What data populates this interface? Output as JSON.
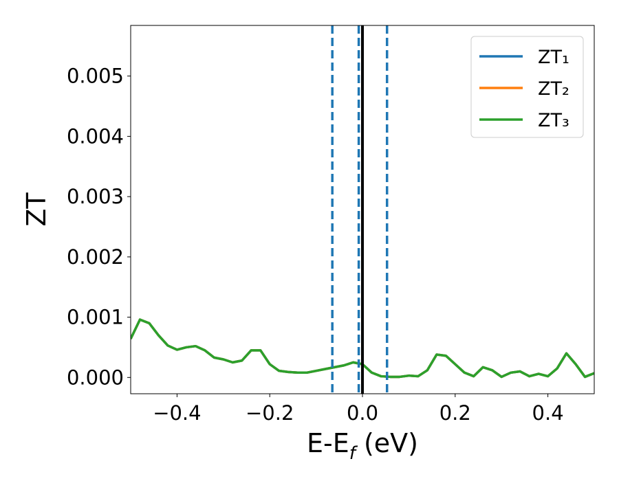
{
  "chart_data": {
    "type": "line",
    "xlabel": [
      "E-E",
      "f",
      " (eV)"
    ],
    "ylabel": "ZT",
    "x": [
      -0.5,
      -0.48,
      -0.46,
      -0.44,
      -0.42,
      -0.4,
      -0.38,
      -0.36,
      -0.34,
      -0.32,
      -0.3,
      -0.28,
      -0.26,
      -0.24,
      -0.22,
      -0.2,
      -0.18,
      -0.16,
      -0.14,
      -0.12,
      -0.1,
      -0.08,
      -0.06,
      -0.04,
      -0.02,
      0.0,
      0.02,
      0.04,
      0.06,
      0.08,
      0.1,
      0.12,
      0.14,
      0.16,
      0.18,
      0.2,
      0.22,
      0.24,
      0.26,
      0.28,
      0.3,
      0.32,
      0.34,
      0.36,
      0.38,
      0.4,
      0.42,
      0.44,
      0.46,
      0.48,
      0.5
    ],
    "series": [
      {
        "name": "ZT₁",
        "color": "#1f77b4",
        "values": [
          0.00064,
          0.00096,
          0.0009,
          0.0007,
          0.00053,
          0.00046,
          0.0005,
          0.00052,
          0.00045,
          0.00033,
          0.0003,
          0.00025,
          0.00028,
          0.00045,
          0.00045,
          0.00022,
          0.00011,
          9e-05,
          8e-05,
          8e-05,
          0.00011,
          0.00014,
          0.00017,
          0.0002,
          0.00025,
          0.00022,
          8e-05,
          2e-05,
          1e-05,
          1e-05,
          3e-05,
          2e-05,
          0.00012,
          0.00038,
          0.00036,
          0.00022,
          8e-05,
          2e-05,
          0.00017,
          0.00012,
          1e-05,
          8e-05,
          0.0001,
          2e-05,
          6e-05,
          2e-05,
          0.00015,
          0.0004,
          0.00022,
          1e-05,
          7e-05
        ]
      },
      {
        "name": "ZT₂",
        "color": "#ff7f0e",
        "values": [
          0.00064,
          0.00096,
          0.0009,
          0.0007,
          0.00053,
          0.00046,
          0.0005,
          0.00052,
          0.00045,
          0.00033,
          0.0003,
          0.00025,
          0.00028,
          0.00045,
          0.00045,
          0.00022,
          0.00011,
          9e-05,
          8e-05,
          8e-05,
          0.00011,
          0.00014,
          0.00017,
          0.0002,
          0.00025,
          0.00022,
          8e-05,
          2e-05,
          1e-05,
          1e-05,
          3e-05,
          2e-05,
          0.00012,
          0.00038,
          0.00036,
          0.00022,
          8e-05,
          2e-05,
          0.00017,
          0.00012,
          1e-05,
          8e-05,
          0.0001,
          2e-05,
          6e-05,
          2e-05,
          0.00015,
          0.0004,
          0.00022,
          1e-05,
          7e-05
        ]
      },
      {
        "name": "ZT₃",
        "color": "#2ca02c",
        "values": [
          0.00064,
          0.00096,
          0.0009,
          0.0007,
          0.00053,
          0.00046,
          0.0005,
          0.00052,
          0.00045,
          0.00033,
          0.0003,
          0.00025,
          0.00028,
          0.00045,
          0.00045,
          0.00022,
          0.00011,
          9e-05,
          8e-05,
          8e-05,
          0.00011,
          0.00014,
          0.00017,
          0.0002,
          0.00025,
          0.00022,
          8e-05,
          2e-05,
          1e-05,
          1e-05,
          3e-05,
          2e-05,
          0.00012,
          0.00038,
          0.00036,
          0.00022,
          8e-05,
          2e-05,
          0.00017,
          0.00012,
          1e-05,
          8e-05,
          0.0001,
          2e-05,
          6e-05,
          2e-05,
          0.00015,
          0.0004,
          0.00022,
          1e-05,
          7e-05
        ]
      }
    ],
    "vlines": [
      {
        "x": -0.065,
        "color": "#1f77b4",
        "style": "dashed"
      },
      {
        "x": -0.008,
        "color": "#1f77b4",
        "style": "dashed"
      },
      {
        "x": 0.053,
        "color": "#1f77b4",
        "style": "dashed"
      },
      {
        "x": 0.0,
        "color": "#000000",
        "style": "solid"
      }
    ],
    "xlim": [
      -0.5,
      0.5
    ],
    "ylim": [
      -0.00027,
      0.00584
    ],
    "xticks": [
      {
        "value": -0.4,
        "label": "−0.4"
      },
      {
        "value": -0.2,
        "label": "−0.2"
      },
      {
        "value": 0.0,
        "label": "0.0"
      },
      {
        "value": 0.2,
        "label": "0.2"
      },
      {
        "value": 0.4,
        "label": "0.4"
      }
    ],
    "yticks": [
      {
        "value": 0,
        "label": "0.000"
      },
      {
        "value": 0.001,
        "label": "0.001"
      },
      {
        "value": 0.002,
        "label": "0.002"
      },
      {
        "value": 0.003,
        "label": "0.003"
      },
      {
        "value": 0.004,
        "label": "0.004"
      },
      {
        "value": 0.005,
        "label": "0.005"
      }
    ],
    "legend": "upper right",
    "grid": false
  }
}
